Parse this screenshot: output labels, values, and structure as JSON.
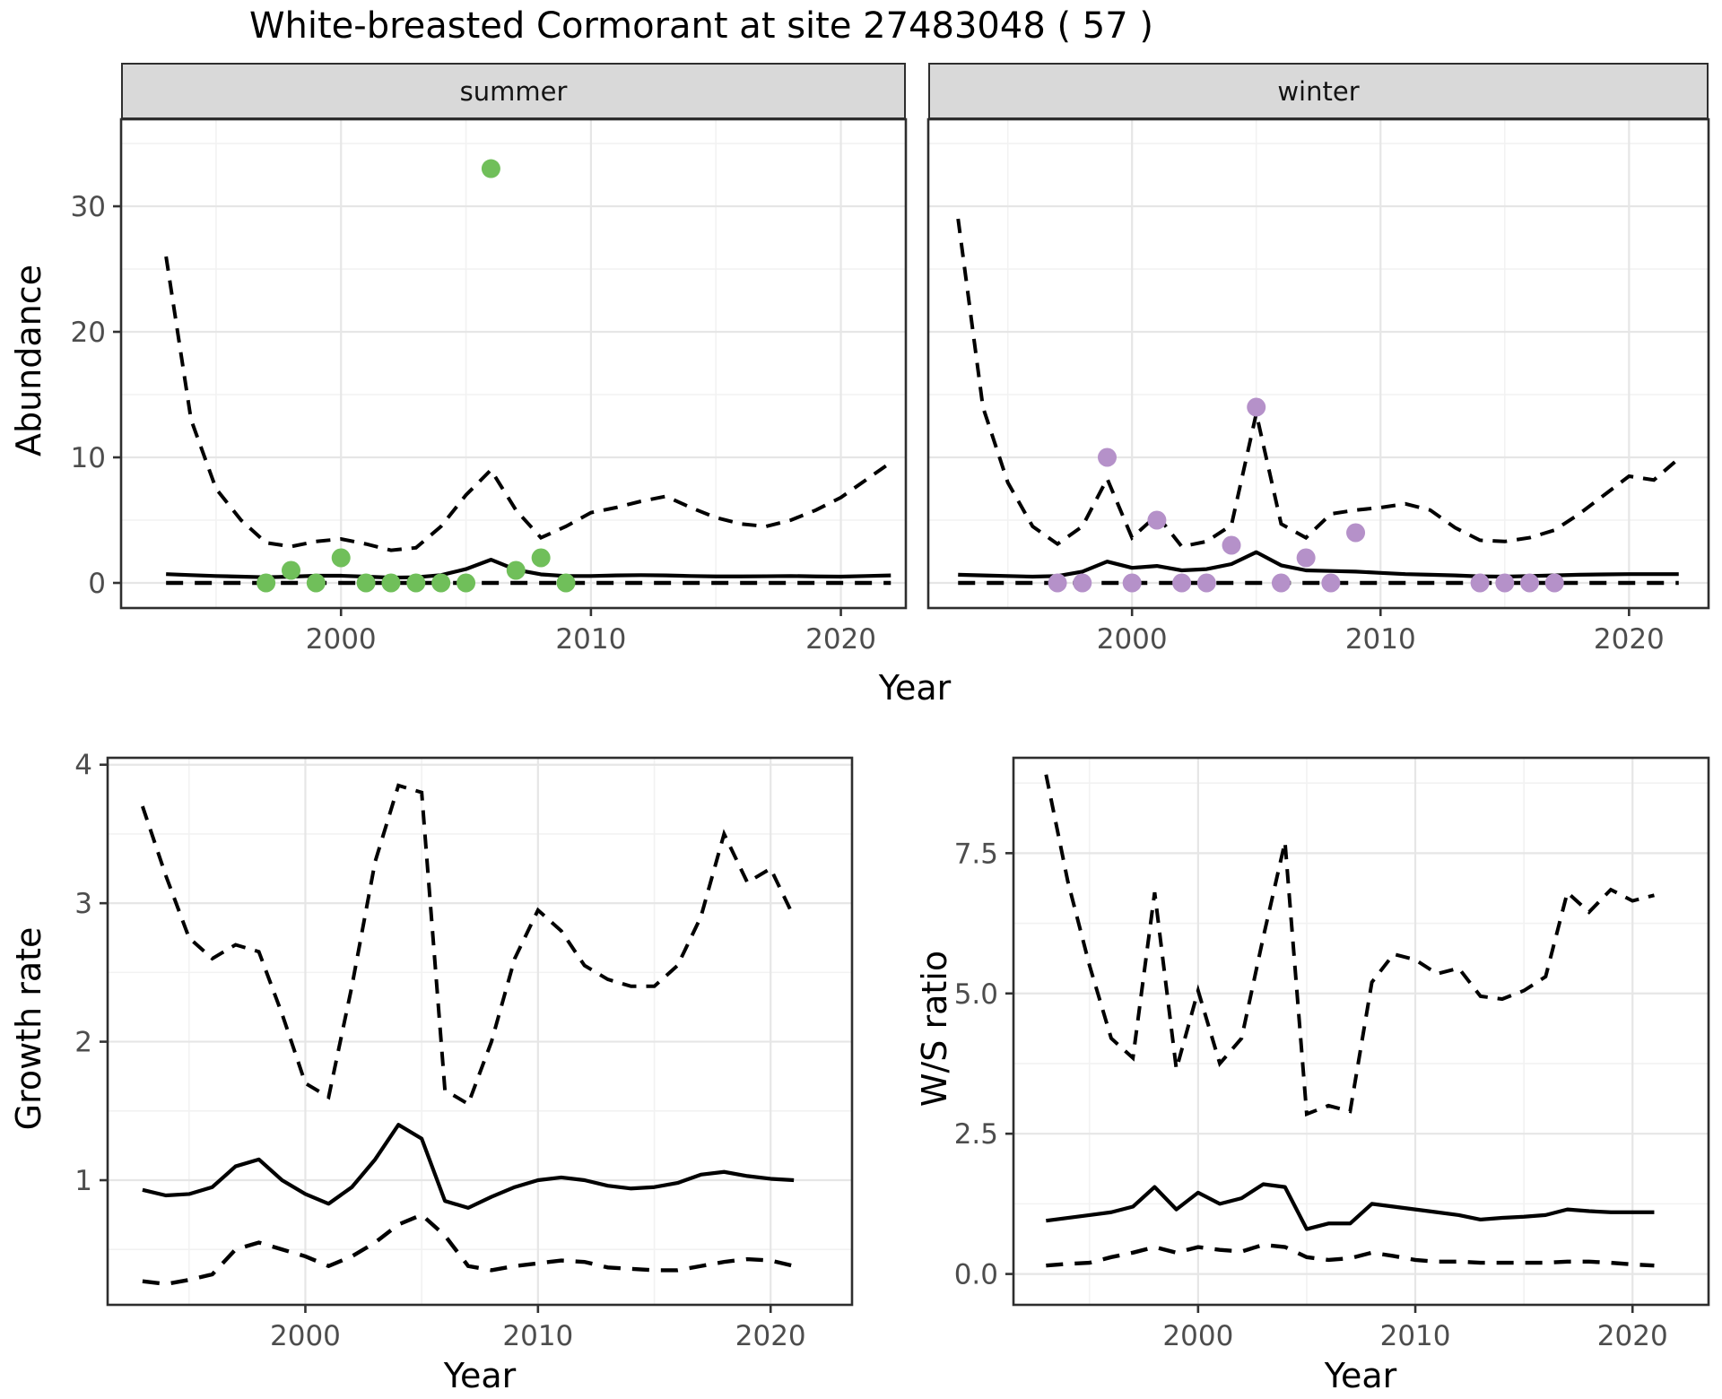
{
  "title": "White-breasted Cormorant at site 27483048 ( 57 )",
  "colors": {
    "summer_point": "#70bf5a",
    "winter_point": "#b591c9",
    "line": "#000000",
    "strip_bg": "#d9d9d9",
    "grid_major": "#e6e6e6",
    "grid_minor": "#f2f2f2",
    "panel_border": "#2e2e2e",
    "tick_text": "#4d4d4d"
  },
  "chart_data": [
    {
      "id": "summer",
      "type": "line+scatter",
      "facet_label": "summer",
      "ylabel": "Abundance",
      "xlabel": "Year",
      "xlim": [
        1991.2,
        2022.6
      ],
      "ylim": [
        -2,
        36.93
      ],
      "xticks": {
        "values": [
          2000,
          2010,
          2020
        ],
        "labels": [
          "2000",
          "2010",
          "2020"
        ],
        "minor": [
          1995,
          2005,
          2015
        ]
      },
      "yticks": {
        "values": [
          0,
          10,
          20,
          30
        ],
        "labels": [
          "0",
          "10",
          "20",
          "30"
        ],
        "minor": [
          5,
          15,
          25,
          35
        ]
      },
      "x": [
        1993,
        1994,
        1995,
        1996,
        1997,
        1998,
        1999,
        2000,
        2001,
        2002,
        2003,
        2004,
        2005,
        2006,
        2007,
        2008,
        2009,
        2010,
        2011,
        2012,
        2013,
        2014,
        2015,
        2016,
        2017,
        2018,
        2019,
        2020,
        2021,
        2022
      ],
      "series": {
        "fit": [
          0.7,
          0.62,
          0.55,
          0.5,
          0.45,
          0.5,
          0.57,
          0.57,
          0.5,
          0.42,
          0.45,
          0.62,
          1.1,
          1.85,
          1.05,
          0.68,
          0.55,
          0.55,
          0.6,
          0.62,
          0.6,
          0.55,
          0.52,
          0.52,
          0.53,
          0.55,
          0.52,
          0.5,
          0.55,
          0.6
        ],
        "upper_ci": [
          26.0,
          13.0,
          7.5,
          5.0,
          3.2,
          2.9,
          3.3,
          3.5,
          3.1,
          2.6,
          2.8,
          4.5,
          7.0,
          9.0,
          5.8,
          3.6,
          4.5,
          5.6,
          6.0,
          6.5,
          6.9,
          6.0,
          5.2,
          4.7,
          4.5,
          5.0,
          5.8,
          6.8,
          8.2,
          9.6
        ],
        "lower_ci": [
          0,
          0,
          0,
          0,
          0,
          0,
          0,
          0,
          0,
          0,
          0,
          0,
          0,
          0,
          0,
          0,
          0,
          0,
          0,
          0,
          0,
          0,
          0,
          0,
          0,
          0,
          0,
          0,
          0,
          0
        ]
      },
      "points": {
        "x": [
          1997,
          1998,
          1999,
          2000,
          2001,
          2002,
          2003,
          2004,
          2005,
          2006,
          2007,
          2008,
          2009
        ],
        "y": [
          0,
          1,
          0,
          2,
          0,
          0,
          0,
          0,
          0,
          33,
          1,
          2,
          0
        ]
      }
    },
    {
      "id": "winter",
      "type": "line+scatter",
      "facet_label": "winter",
      "ylabel": "Abundance",
      "xlabel": "Year",
      "xlim": [
        1991.8,
        2023.2
      ],
      "ylim": [
        -2,
        36.93
      ],
      "xticks": {
        "values": [
          2000,
          2010,
          2020
        ],
        "labels": [
          "2000",
          "2010",
          "2020"
        ],
        "minor": [
          1995,
          2005,
          2015
        ]
      },
      "yticks": {
        "values": [
          0,
          10,
          20,
          30
        ],
        "labels": [
          "0",
          "10",
          "20",
          "30"
        ],
        "minor": [
          5,
          15,
          25,
          35
        ]
      },
      "x": [
        1993,
        1994,
        1995,
        1996,
        1997,
        1998,
        1999,
        2000,
        2001,
        2002,
        2003,
        2004,
        2005,
        2006,
        2007,
        2008,
        2009,
        2010,
        2011,
        2012,
        2013,
        2014,
        2015,
        2016,
        2017,
        2018,
        2019,
        2020,
        2021,
        2022
      ],
      "series": {
        "fit": [
          0.65,
          0.6,
          0.55,
          0.5,
          0.55,
          0.9,
          1.7,
          1.2,
          1.35,
          1.0,
          1.1,
          1.5,
          2.45,
          1.4,
          1.0,
          0.95,
          0.9,
          0.8,
          0.7,
          0.65,
          0.6,
          0.52,
          0.5,
          0.55,
          0.6,
          0.65,
          0.68,
          0.7,
          0.7,
          0.7
        ],
        "upper_ci": [
          29.0,
          14.0,
          8.0,
          4.5,
          3.1,
          4.5,
          8.3,
          3.6,
          5.4,
          2.9,
          3.3,
          4.6,
          13.5,
          4.7,
          3.6,
          5.5,
          5.8,
          6.0,
          6.3,
          5.8,
          4.4,
          3.4,
          3.3,
          3.6,
          4.2,
          5.5,
          7.0,
          8.5,
          8.2,
          9.9
        ],
        "lower_ci": [
          0,
          0,
          0,
          0,
          0,
          0,
          0,
          0,
          0,
          0,
          0,
          0,
          0,
          0,
          0,
          0,
          0,
          0,
          0,
          0,
          0,
          0,
          0,
          0,
          0,
          0,
          0,
          0,
          0,
          0
        ]
      },
      "points": {
        "x": [
          1997,
          1998,
          1999,
          2000,
          2001,
          2002,
          2003,
          2004,
          2005,
          2006,
          2007,
          2008,
          2009,
          2014,
          2015,
          2016,
          2017
        ],
        "y": [
          0,
          0,
          10,
          0,
          5,
          0,
          0,
          3,
          14,
          0,
          2,
          0,
          4,
          0,
          0,
          0,
          0
        ]
      }
    },
    {
      "id": "growth",
      "type": "line",
      "ylabel": "Growth rate",
      "xlabel": "Year",
      "xlim": [
        1991.5,
        2023.5
      ],
      "ylim": [
        0.1,
        4.05
      ],
      "xticks": {
        "values": [
          2000,
          2010,
          2020
        ],
        "labels": [
          "2000",
          "2010",
          "2020"
        ],
        "minor": [
          1995,
          2005,
          2015
        ]
      },
      "yticks": {
        "values": [
          1,
          2,
          3,
          4
        ],
        "labels": [
          "1",
          "2",
          "3",
          "4"
        ],
        "minor": [
          0.5,
          1.5,
          2.5,
          3.5
        ]
      },
      "x": [
        1993,
        1994,
        1995,
        1996,
        1997,
        1998,
        1999,
        2000,
        2001,
        2002,
        2003,
        2004,
        2005,
        2006,
        2007,
        2008,
        2009,
        2010,
        2011,
        2012,
        2013,
        2014,
        2015,
        2016,
        2017,
        2018,
        2019,
        2020,
        2021
      ],
      "series": {
        "fit": [
          0.93,
          0.89,
          0.9,
          0.95,
          1.1,
          1.15,
          1.0,
          0.9,
          0.83,
          0.95,
          1.15,
          1.4,
          1.3,
          0.85,
          0.8,
          0.88,
          0.95,
          1.0,
          1.02,
          1.0,
          0.96,
          0.94,
          0.95,
          0.98,
          1.04,
          1.06,
          1.03,
          1.01,
          1.0
        ],
        "upper_ci": [
          3.7,
          3.2,
          2.75,
          2.6,
          2.7,
          2.65,
          2.2,
          1.7,
          1.6,
          2.4,
          3.3,
          3.85,
          3.8,
          1.65,
          1.55,
          2.0,
          2.6,
          2.95,
          2.8,
          2.55,
          2.45,
          2.4,
          2.4,
          2.55,
          2.9,
          3.5,
          3.15,
          3.25,
          2.9
        ],
        "lower_ci": [
          0.27,
          0.25,
          0.28,
          0.32,
          0.5,
          0.55,
          0.5,
          0.45,
          0.38,
          0.45,
          0.55,
          0.68,
          0.75,
          0.6,
          0.38,
          0.35,
          0.38,
          0.4,
          0.42,
          0.41,
          0.37,
          0.36,
          0.35,
          0.35,
          0.38,
          0.41,
          0.43,
          0.42,
          0.38
        ]
      }
    },
    {
      "id": "ws",
      "type": "line",
      "ylabel": "W/S ratio",
      "xlabel": "Year",
      "xlim": [
        1991.5,
        2023.5
      ],
      "ylim": [
        -0.55,
        9.2
      ],
      "xticks": {
        "values": [
          2000,
          2010,
          2020
        ],
        "labels": [
          "2000",
          "2010",
          "2020"
        ],
        "minor": [
          1995,
          2005,
          2015
        ]
      },
      "yticks": {
        "values": [
          0,
          2.5,
          5,
          7.5
        ],
        "labels": [
          "0.0",
          "2.5",
          "5.0",
          "7.5"
        ],
        "minor": [
          1.25,
          3.75,
          6.25,
          8.75
        ]
      },
      "x": [
        1993,
        1994,
        1995,
        1996,
        1997,
        1998,
        1999,
        2000,
        2001,
        2002,
        2003,
        2004,
        2005,
        2006,
        2007,
        2008,
        2009,
        2010,
        2011,
        2012,
        2013,
        2014,
        2015,
        2016,
        2017,
        2018,
        2019,
        2020,
        2021
      ],
      "series": {
        "fit": [
          0.95,
          1.0,
          1.05,
          1.1,
          1.2,
          1.55,
          1.15,
          1.45,
          1.25,
          1.35,
          1.6,
          1.55,
          0.8,
          0.9,
          0.9,
          1.25,
          1.2,
          1.15,
          1.1,
          1.05,
          0.97,
          1.0,
          1.02,
          1.05,
          1.15,
          1.12,
          1.1,
          1.1,
          1.1
        ],
        "upper_ci": [
          8.9,
          7.0,
          5.5,
          4.2,
          3.85,
          6.8,
          3.65,
          5.05,
          3.75,
          4.2,
          6.0,
          7.7,
          2.85,
          3.0,
          2.9,
          5.2,
          5.7,
          5.6,
          5.35,
          5.45,
          4.95,
          4.9,
          5.05,
          5.3,
          6.8,
          6.45,
          6.85,
          6.65,
          6.75
        ],
        "lower_ci": [
          0.15,
          0.18,
          0.2,
          0.3,
          0.38,
          0.48,
          0.38,
          0.48,
          0.43,
          0.4,
          0.52,
          0.48,
          0.3,
          0.25,
          0.28,
          0.38,
          0.32,
          0.25,
          0.22,
          0.22,
          0.2,
          0.2,
          0.2,
          0.2,
          0.22,
          0.22,
          0.2,
          0.17,
          0.15
        ]
      }
    }
  ]
}
